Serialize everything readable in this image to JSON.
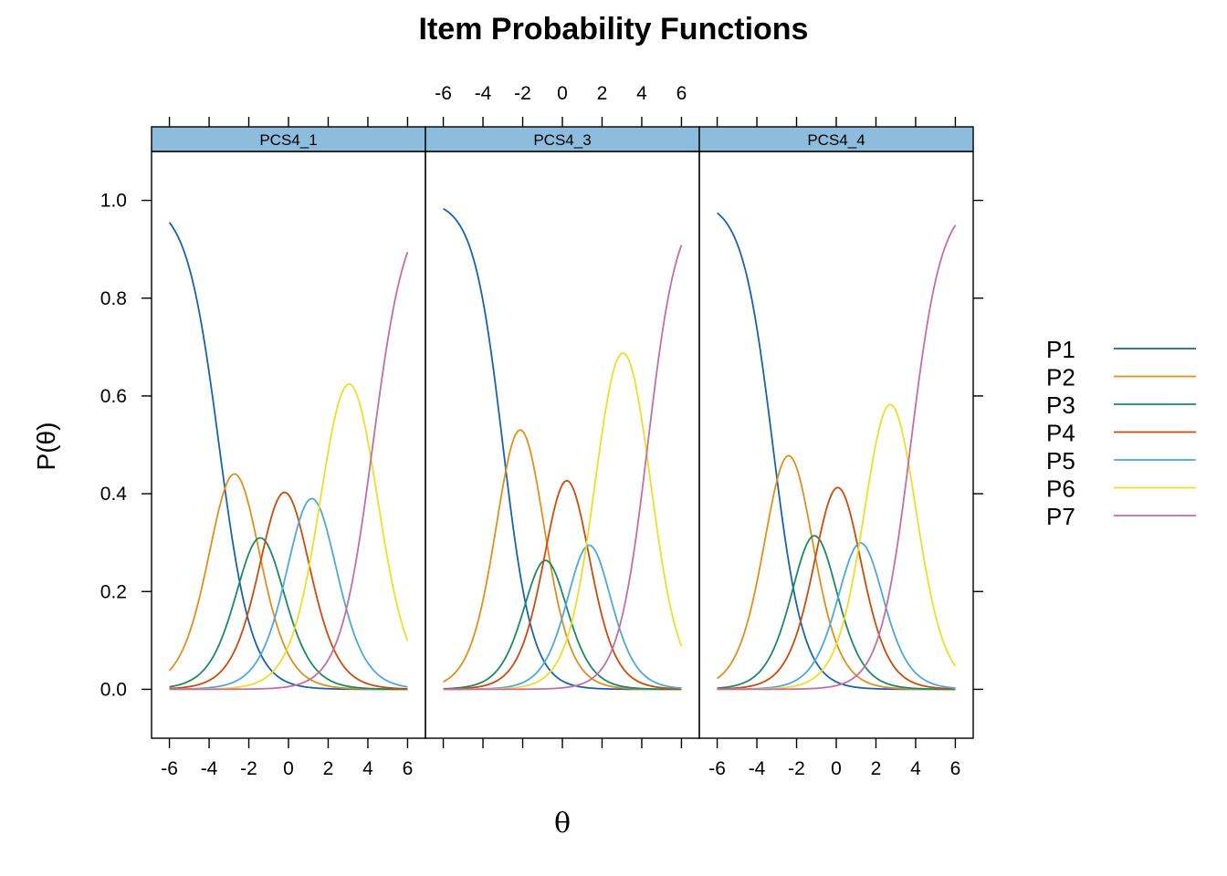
{
  "chart_data": {
    "type": "line",
    "title": "Item Probability Functions",
    "xlabel": "θ",
    "ylabel": "P(θ)",
    "xlim": [
      -6.9,
      6.9
    ],
    "ylim": [
      -0.1,
      1.1
    ],
    "x_ticks": [
      -6,
      -4,
      -2,
      0,
      2,
      4,
      6
    ],
    "y_ticks": [
      0.0,
      0.2,
      0.4,
      0.6,
      0.8,
      1.0
    ],
    "x_tick_labels": [
      "-6",
      "-4",
      "-2",
      "0",
      "2",
      "4",
      "6"
    ],
    "y_tick_labels": [
      "0.0",
      "0.2",
      "0.4",
      "0.6",
      "0.8",
      "1.0"
    ],
    "x_range": [
      -6,
      6
    ],
    "legend_placement": "right",
    "legend": [
      {
        "name": "P1",
        "color": "#1764AB"
      },
      {
        "name": "P2",
        "color": "#E08F1C"
      },
      {
        "name": "P3",
        "color": "#1B8A62"
      },
      {
        "name": "P4",
        "color": "#CC4A0C"
      },
      {
        "name": "P5",
        "color": "#4DA8DC"
      },
      {
        "name": "P6",
        "color": "#EEDD2A"
      },
      {
        "name": "P7",
        "color": "#C46FA0"
      }
    ],
    "panels": [
      {
        "name": "PCS4_1",
        "a": 1.22,
        "b": [
          -3.5,
          -1.95,
          -0.9,
          0.5,
          1.85,
          4.25
        ]
      },
      {
        "name": "PCS4_3",
        "a": 1.35,
        "b": [
          -3.0,
          -1.25,
          -0.45,
          0.9,
          1.8,
          4.3
        ]
      },
      {
        "name": "PCS4_4",
        "a": 1.3,
        "b": [
          -3.2,
          -1.6,
          -0.6,
          0.75,
          1.7,
          3.75
        ]
      }
    ]
  }
}
